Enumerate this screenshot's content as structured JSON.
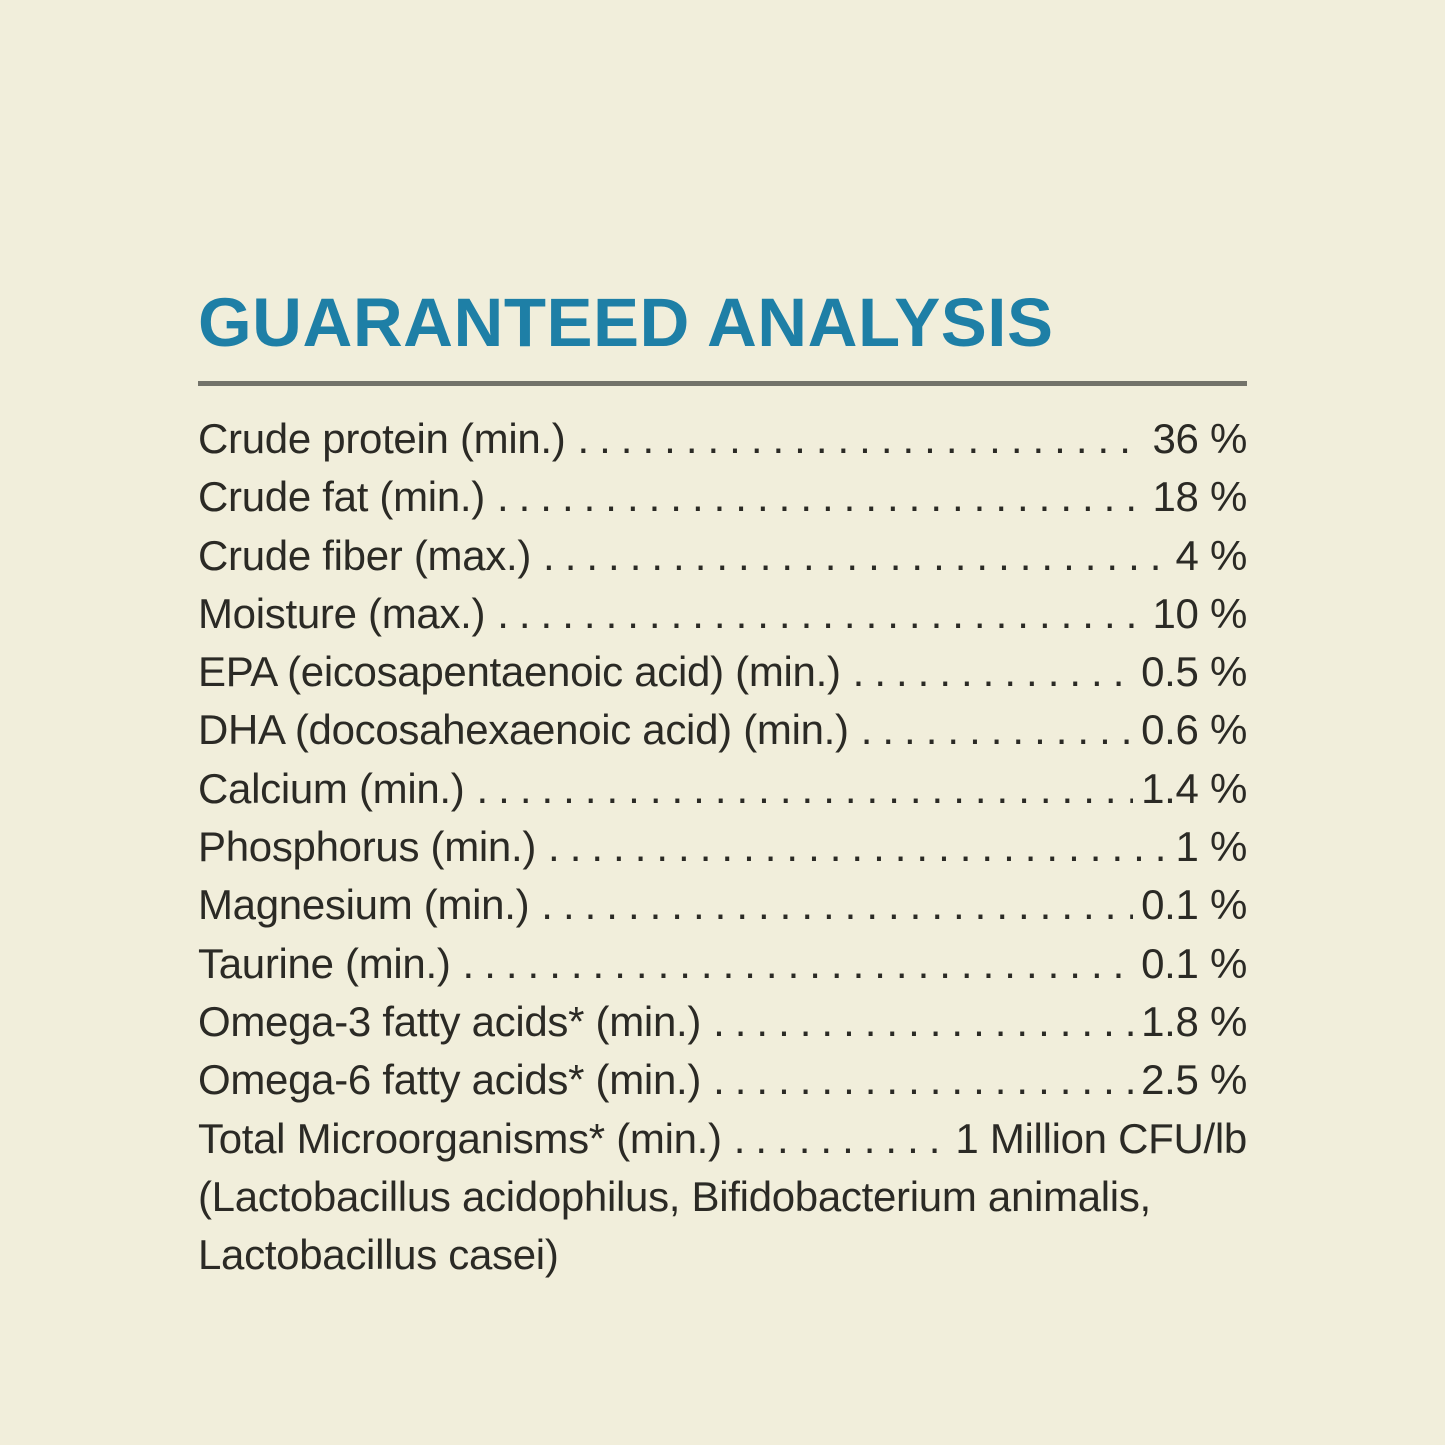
{
  "page": {
    "background_color": "#f1eedb",
    "title_color": "#1e7fa6",
    "divider_color": "#73736a",
    "text_color": "#2b2a25"
  },
  "header": {
    "title": "GUARANTEED ANALYSIS"
  },
  "analysis": {
    "rows": [
      {
        "label": "Crude protein (min.)",
        "value": "36 %"
      },
      {
        "label": "Crude fat (min.)",
        "value": "18 %"
      },
      {
        "label": "Crude fiber (max.)",
        "value": "4 %"
      },
      {
        "label": "Moisture (max.)",
        "value": "10 %"
      },
      {
        "label": "EPA (eicosapentaenoic acid) (min.)",
        "value": "0.5 %"
      },
      {
        "label": "DHA (docosahexaenoic acid) (min.)",
        "value": "0.6 %"
      },
      {
        "label": "Calcium (min.)",
        "value": "1.4 %"
      },
      {
        "label": "Phosphorus (min.)",
        "value": "1 %"
      },
      {
        "label": "Magnesium (min.)",
        "value": "0.1 %"
      },
      {
        "label": "Taurine (min.)",
        "value": "0.1 %"
      },
      {
        "label": "Omega-3 fatty acids* (min.)",
        "value": "1.8 %"
      },
      {
        "label": "Omega-6 fatty acids* (min.)",
        "value": "2.5 %"
      },
      {
        "label": "Total Microorganisms* (min.)",
        "value": "1 Million CFU/lb"
      }
    ],
    "footnote_lines": [
      "(Lactobacillus acidophilus, Bifidobacterium animalis,",
      "Lactobacillus casei)"
    ]
  }
}
